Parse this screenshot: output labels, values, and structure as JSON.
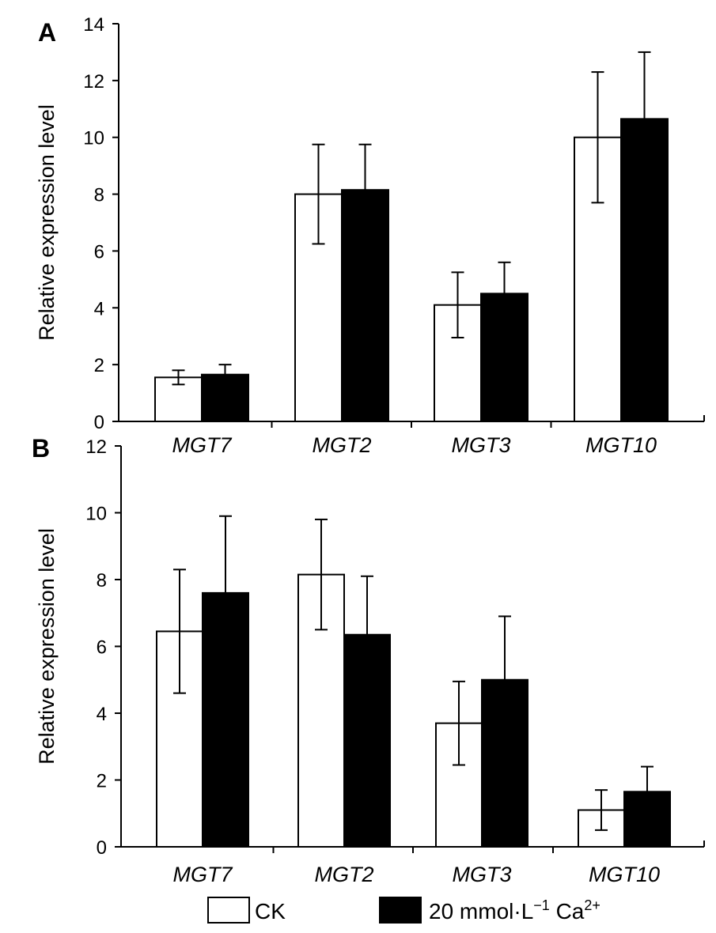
{
  "chart_data": [
    {
      "type": "bar",
      "panel_label": "A",
      "ylabel": "Relative expression level",
      "ylim": [
        0,
        14
      ],
      "yticks": [
        0,
        2,
        4,
        6,
        8,
        10,
        12,
        14
      ],
      "categories": [
        "MGT7",
        "MGT2",
        "MGT3",
        "MGT10"
      ],
      "series": [
        {
          "name": "CK",
          "fill": "#ffffff",
          "values": [
            1.55,
            8.0,
            4.1,
            10.0
          ],
          "errors": [
            0.25,
            1.75,
            1.15,
            2.3
          ]
        },
        {
          "name": "20 mmol·L⁻¹ Ca²⁺",
          "fill": "#000000",
          "values": [
            1.65,
            8.15,
            4.5,
            10.65
          ],
          "errors": [
            0.35,
            1.6,
            1.1,
            2.35
          ]
        }
      ]
    },
    {
      "type": "bar",
      "panel_label": "B",
      "ylabel": "Relative expression level",
      "ylim": [
        0,
        12
      ],
      "yticks": [
        0,
        2,
        4,
        6,
        8,
        10,
        12
      ],
      "categories": [
        "MGT7",
        "MGT2",
        "MGT3",
        "MGT10"
      ],
      "series": [
        {
          "name": "CK",
          "fill": "#ffffff",
          "values": [
            6.45,
            8.15,
            3.7,
            1.1
          ],
          "errors": [
            1.85,
            1.65,
            1.25,
            0.6
          ]
        },
        {
          "name": "20 mmol·L⁻¹ Ca²⁺",
          "fill": "#000000",
          "values": [
            7.6,
            6.35,
            5.0,
            1.65
          ],
          "errors": [
            2.3,
            1.75,
            1.9,
            0.75
          ]
        }
      ]
    }
  ],
  "legend": {
    "ck_label": "CK",
    "ca_prefix": "20 mmol·L",
    "ca_sup1": "−1",
    "ca_mid": " Ca",
    "ca_sup2": "2+"
  }
}
